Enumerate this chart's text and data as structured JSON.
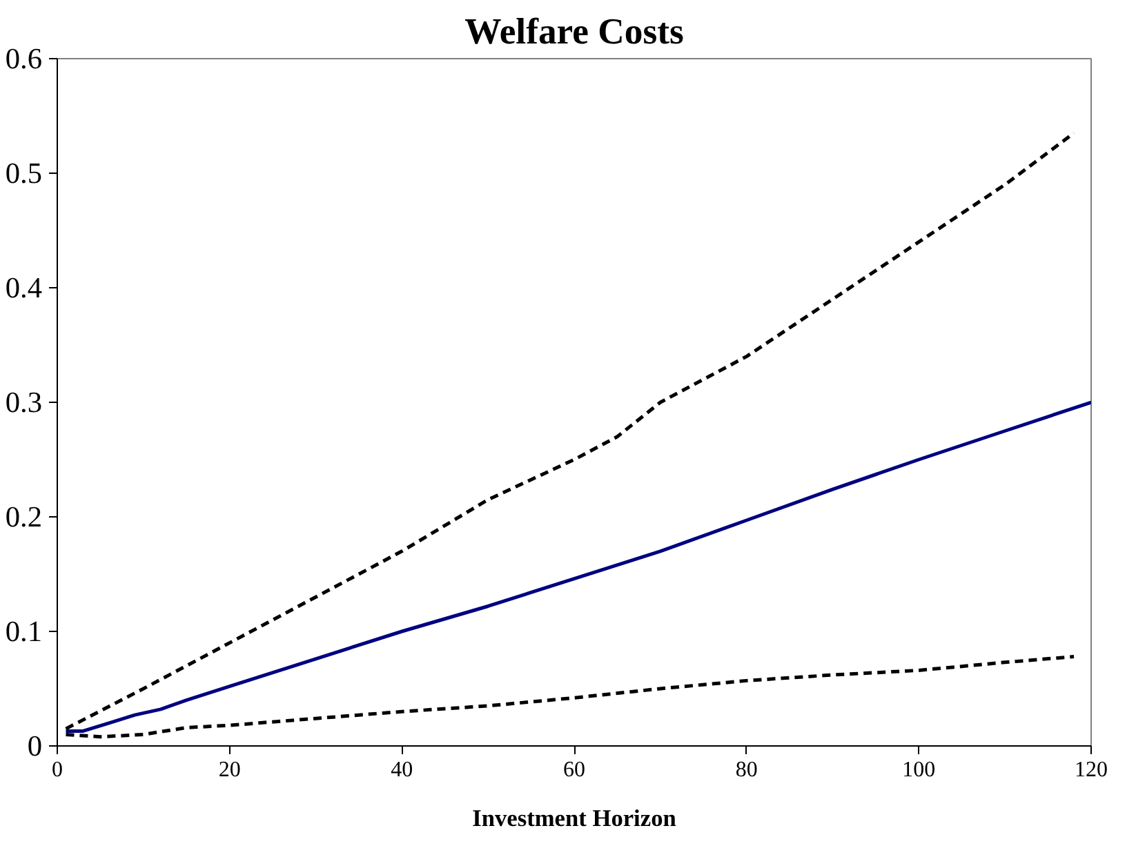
{
  "chart_data": {
    "type": "line",
    "title": "Welfare Costs",
    "xlabel": "Investment Horizon",
    "xlim": [
      0,
      120
    ],
    "xticks": [
      0,
      20,
      40,
      60,
      80,
      100,
      120
    ],
    "ylim": [
      0,
      0.6
    ],
    "yticks": [
      0,
      0.1,
      0.2,
      0.3,
      0.4,
      0.5,
      0.6
    ],
    "grid": false,
    "marker": "none",
    "series": [
      {
        "color": "#000000",
        "line_style": "dashed",
        "x": [
          1,
          10,
          20,
          30,
          40,
          50,
          60,
          65,
          70,
          80,
          90,
          100,
          110,
          118
        ],
        "values": [
          0.015,
          0.05,
          0.09,
          0.13,
          0.17,
          0.215,
          0.25,
          0.27,
          0.3,
          0.34,
          0.39,
          0.44,
          0.49,
          0.535
        ]
      },
      {
        "color": "#000080",
        "line_style": "solid",
        "x": [
          1,
          3,
          6,
          9,
          12,
          15,
          20,
          30,
          40,
          50,
          60,
          70,
          80,
          90,
          100,
          110,
          120
        ],
        "values": [
          0.013,
          0.013,
          0.02,
          0.027,
          0.032,
          0.04,
          0.052,
          0.076,
          0.1,
          0.122,
          0.146,
          0.17,
          0.197,
          0.224,
          0.25,
          0.275,
          0.3
        ]
      },
      {
        "color": "#000000",
        "line_style": "dashed",
        "x": [
          1,
          5,
          10,
          15,
          20,
          30,
          40,
          50,
          60,
          70,
          80,
          90,
          100,
          110,
          118
        ],
        "values": [
          0.01,
          0.008,
          0.01,
          0.016,
          0.018,
          0.024,
          0.03,
          0.035,
          0.042,
          0.05,
          0.057,
          0.062,
          0.066,
          0.073,
          0.078
        ]
      }
    ]
  }
}
